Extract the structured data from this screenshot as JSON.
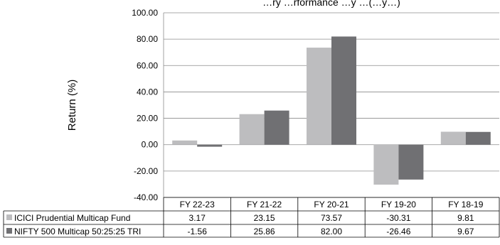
{
  "chart_data": {
    "type": "bar",
    "title": "…ry …rformance …y …(…y…)",
    "ylabel": "Return (%)",
    "categories": [
      "FY 22-23",
      "FY 21-22",
      "FY 20-21",
      "FY 19-20",
      "FY 18-19"
    ],
    "ylim": [
      -40,
      100
    ],
    "yticks": [
      -40,
      -20,
      0,
      20,
      40,
      60,
      80,
      100
    ],
    "ytick_labels": [
      "-40.00",
      "-20.00",
      "0.00",
      "20.00",
      "40.00",
      "60.00",
      "80.00",
      "100.00"
    ],
    "grid": true,
    "series": [
      {
        "name": "ICICI Prudential Multicap Fund",
        "color": "#bdbdbf",
        "values": [
          3.17,
          23.15,
          73.57,
          -30.31,
          9.81
        ],
        "value_labels": [
          "3.17",
          "23.15",
          "73.57",
          "-30.31",
          "9.81"
        ]
      },
      {
        "name": "NIFTY 500 Multicap 50:25:25 TRI",
        "color": "#707073",
        "values": [
          -1.56,
          25.86,
          82.0,
          -26.46,
          9.67
        ],
        "value_labels": [
          "-1.56",
          "25.86",
          "82.00",
          "-26.46",
          "9.67"
        ]
      }
    ]
  }
}
